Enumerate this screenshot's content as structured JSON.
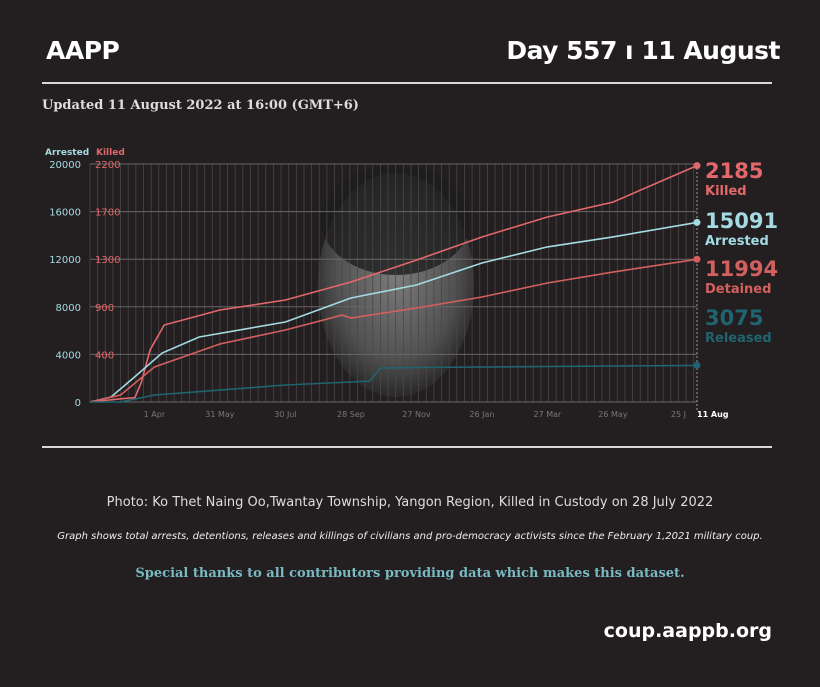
{
  "header": {
    "brand": "AAPP",
    "day": "Day 557 ı 11 August",
    "updated": "Updated 11 August 2022 at 16:00 (GMT+6)"
  },
  "footer": {
    "photo_caption": "Photo: Ko Thet Naing Oo,Twantay Township, Yangon Region, Killed in Custody on 28 July 2022",
    "note": "Graph shows total arrests, detentions, releases and killings of civilians and pro-democracy activists since the February 1,2021 military coup.",
    "thanks": "Special thanks to all contributors providing data which makes this dataset.",
    "url": "coup.aappb.org"
  },
  "chart_data": {
    "type": "line",
    "x_start": "2021-02-01",
    "x_end": "2022-08-11",
    "x_tick_labels": [
      "1 Apr",
      "31 May",
      "30 Jul",
      "28 Sep",
      "27 Nov",
      "26 Jan",
      "27 Mar",
      "26 May",
      "25 J",
      "11 Aug"
    ],
    "x_tick_dates": [
      "2021-04-01",
      "2021-05-31",
      "2021-07-30",
      "2021-09-28",
      "2021-11-27",
      "2022-01-26",
      "2022-03-27",
      "2022-05-26",
      "2022-07-25",
      "2022-08-11"
    ],
    "y_left": {
      "label": "Arrested",
      "ticks": [
        0,
        4000,
        8000,
        12000,
        16000,
        20000
      ],
      "range": [
        0,
        20000
      ]
    },
    "y_right": {
      "label": "Killed",
      "ticks": [
        "",
        "400",
        "900",
        "1300",
        "1700",
        "2200"
      ],
      "range": [
        0,
        2200
      ]
    },
    "grid": true,
    "colors": {
      "killed": "#e2686b",
      "arrested": "#a4dbe2",
      "detained": "#d3605f",
      "released": "#1f6470"
    },
    "series": [
      {
        "key": "killed",
        "name": "Killed",
        "axis": "right",
        "final": "2185",
        "dates": [
          "2021-02-01",
          "2021-03-01",
          "2021-03-14",
          "2021-03-20",
          "2021-03-28",
          "2021-04-10",
          "2021-05-31",
          "2021-07-30",
          "2021-09-28",
          "2021-11-27",
          "2022-01-26",
          "2022-03-27",
          "2022-05-26",
          "2022-08-11"
        ],
        "values": [
          0,
          30,
          40,
          180,
          480,
          712,
          850,
          943,
          1109,
          1312,
          1525,
          1710,
          1848,
          2185
        ]
      },
      {
        "key": "arrested",
        "name": "Arrested",
        "axis": "left",
        "final": "15091",
        "dates": [
          "2021-02-01",
          "2021-02-20",
          "2021-03-05",
          "2021-04-08",
          "2021-05-12",
          "2021-07-30",
          "2021-09-28",
          "2021-11-27",
          "2022-01-26",
          "2022-03-27",
          "2022-05-26",
          "2022-08-11"
        ],
        "values": [
          0,
          400,
          1400,
          4120,
          5460,
          6720,
          8740,
          9830,
          11680,
          13030,
          13870,
          15091
        ]
      },
      {
        "key": "detained",
        "name": "Detained",
        "axis": "left",
        "final": "11994",
        "dates": [
          "2021-02-01",
          "2021-03-01",
          "2021-04-01",
          "2021-05-31",
          "2021-07-30",
          "2021-09-20",
          "2021-09-28",
          "2021-11-27",
          "2022-01-26",
          "2022-03-27",
          "2022-05-26",
          "2022-08-11"
        ],
        "values": [
          0,
          590,
          2940,
          4870,
          6050,
          7300,
          7060,
          7900,
          8820,
          10000,
          10920,
          11994
        ]
      },
      {
        "key": "released",
        "name": "Released",
        "axis": "left",
        "final": "3075",
        "dates": [
          "2021-02-01",
          "2021-03-01",
          "2021-04-01",
          "2021-05-31",
          "2021-07-30",
          "2021-09-28",
          "2021-10-15",
          "2021-10-25",
          "2021-11-27",
          "2022-08-11"
        ],
        "values": [
          0,
          0,
          590,
          1000,
          1430,
          1680,
          1750,
          2850,
          2900,
          3075
        ]
      }
    ]
  }
}
